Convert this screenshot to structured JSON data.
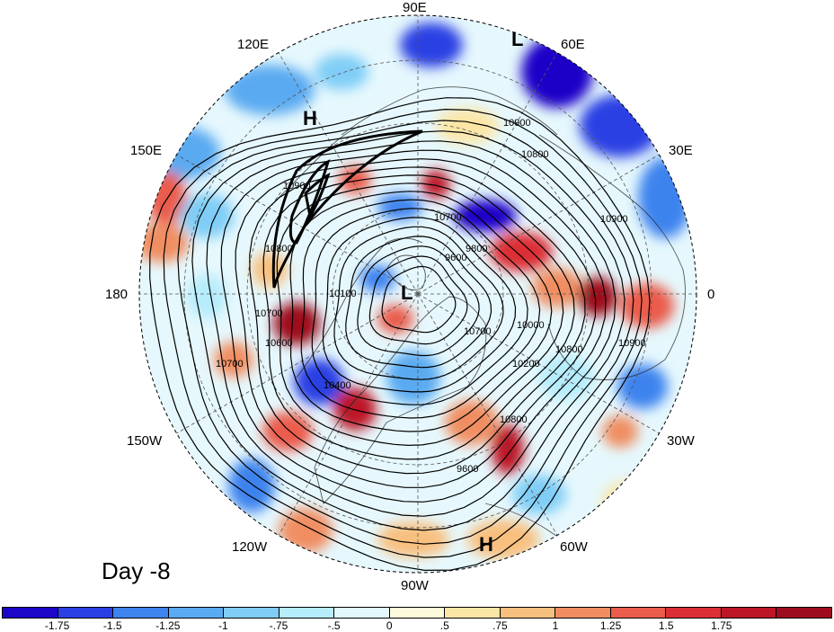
{
  "panel_label": "Day -8",
  "longitude_labels": {
    "lon_90E": "90E",
    "lon_60E": "60E",
    "lon_30E": "30E",
    "lon_0": "0",
    "lon_30W": "30W",
    "lon_60W": "60W",
    "lon_90W": "90W",
    "lon_120W": "120W",
    "lon_150W": "150W",
    "lon_180": "180",
    "lon_150E": "150E",
    "lon_120E": "120E"
  },
  "pressure_centers": [
    {
      "id": "low-top",
      "label": "L"
    },
    {
      "id": "high-upper-left",
      "label": "H"
    },
    {
      "id": "low-pole",
      "label": "L"
    },
    {
      "id": "high-bottom",
      "label": "H"
    }
  ],
  "contour_labels": [
    "10900",
    "10800",
    "10700",
    "10600",
    "10400",
    "10200",
    "10000",
    "9800",
    "9600",
    "10100",
    "10700",
    "10800",
    "10900",
    "10700",
    "10800",
    "10900",
    "10700",
    "10800",
    "9600",
    "10900"
  ],
  "colorbar": {
    "colors": [
      "#1c06c8",
      "#2c3fe3",
      "#3e83ee",
      "#5aaaf1",
      "#7fcdf6",
      "#b6ecfb",
      "#e2f8fd",
      "#fefbdc",
      "#fce6a6",
      "#f8c07f",
      "#f08e62",
      "#ea5c4b",
      "#dc2e35",
      "#bd1727",
      "#9e0c1f"
    ],
    "labels": [
      "-1.75",
      "-1.5",
      "-1.25",
      "-1",
      "-.75",
      "-.5",
      "0",
      ".5",
      ".75",
      "1",
      "1.25",
      "1.5",
      "1.75"
    ]
  }
}
